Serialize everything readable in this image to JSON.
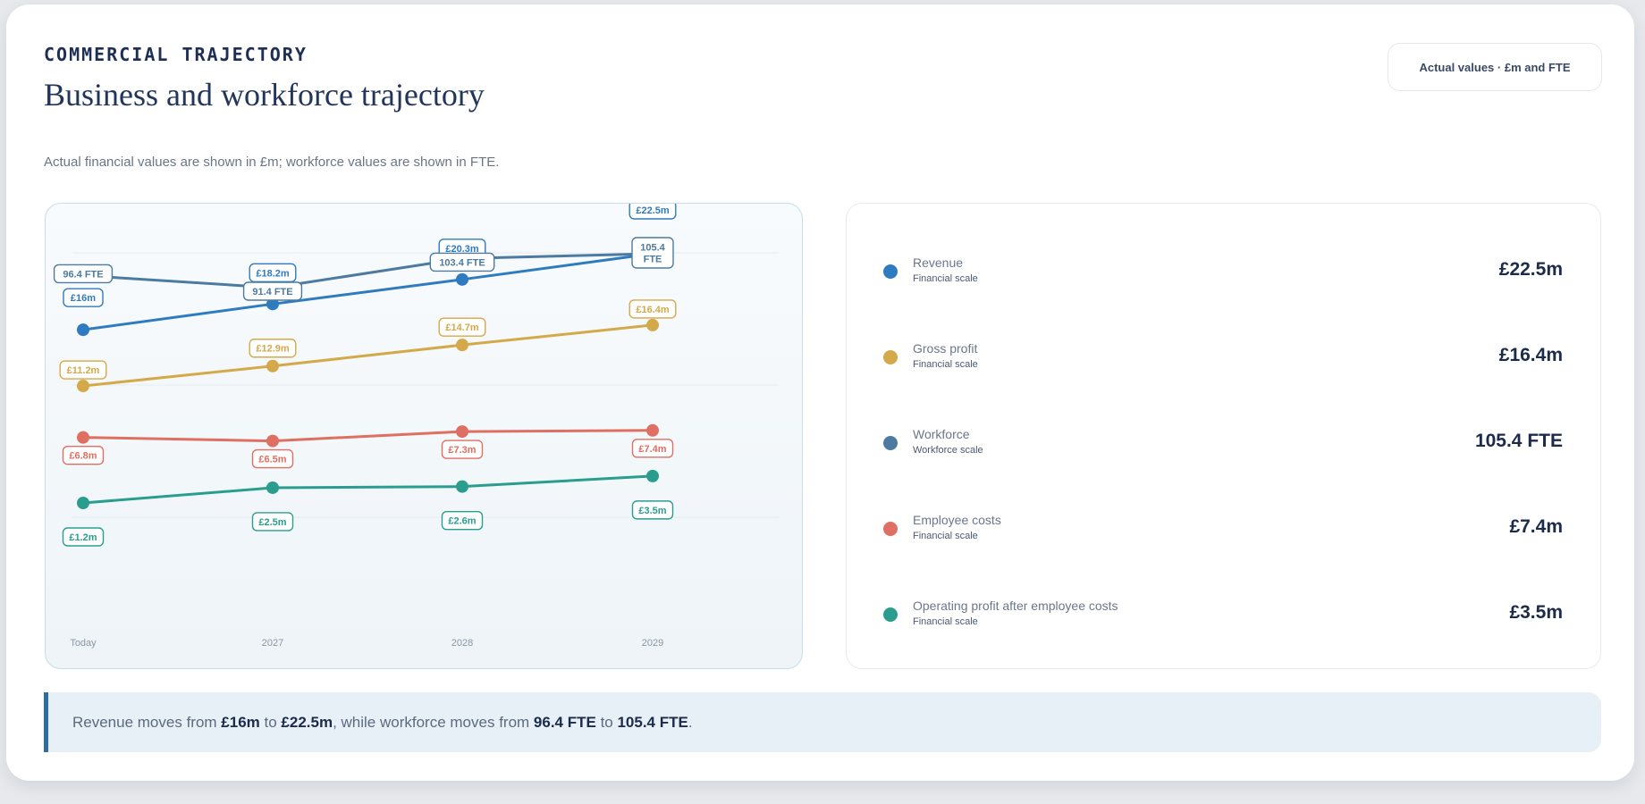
{
  "header": {
    "eyebrow": "COMMERCIAL TRAJECTORY",
    "title": "Business and workforce trajectory",
    "subtitle": "Actual financial values are shown in £m; workforce values are shown in FTE.",
    "badge": "Actual values · £m and FTE"
  },
  "colors": {
    "revenue": "#2f7bbf",
    "gross_profit": "#d4a94a",
    "workforce": "#4c7aa0",
    "employee_costs": "#df6f62",
    "operating_profit": "#2a9d8f"
  },
  "chart_data": {
    "type": "line",
    "x": [
      "Today",
      "2027",
      "2028",
      "2029"
    ],
    "series": [
      {
        "name": "Revenue",
        "key": "revenue",
        "scale": "financial",
        "values": [
          16,
          18.2,
          20.3,
          22.5
        ],
        "labels": [
          "£16m",
          "£18.2m",
          "£20.3m",
          "£22.5m"
        ]
      },
      {
        "name": "Gross profit",
        "key": "gross_profit",
        "scale": "financial",
        "values": [
          11.2,
          12.9,
          14.7,
          16.4
        ],
        "labels": [
          "£11.2m",
          "£12.9m",
          "£14.7m",
          "£16.4m"
        ]
      },
      {
        "name": "Workforce",
        "key": "workforce",
        "scale": "workforce",
        "values": [
          96.4,
          91.4,
          103.4,
          105.4
        ],
        "labels": [
          "96.4 FTE",
          "91.4 FTE",
          "103.4 FTE",
          "105.4 FTE"
        ]
      },
      {
        "name": "Employee costs",
        "key": "employee_costs",
        "scale": "financial",
        "values": [
          6.8,
          6.5,
          7.3,
          7.4
        ],
        "labels": [
          "£6.8m",
          "£6.5m",
          "£7.3m",
          "£7.4m"
        ]
      },
      {
        "name": "Operating profit after employee costs",
        "key": "operating_profit",
        "scale": "financial",
        "values": [
          1.2,
          2.5,
          2.6,
          3.5
        ],
        "labels": [
          "£1.2m",
          "£2.5m",
          "£2.6m",
          "£3.5m"
        ]
      }
    ]
  },
  "legend": [
    {
      "name": "Revenue",
      "scale": "Financial scale",
      "value": "£22.5m"
    },
    {
      "name": "Gross profit",
      "scale": "Financial scale",
      "value": "£16.4m"
    },
    {
      "name": "Workforce",
      "scale": "Workforce scale",
      "value": "105.4 FTE"
    },
    {
      "name": "Employee costs",
      "scale": "Financial scale",
      "value": "£7.4m"
    },
    {
      "name": "Operating profit after employee costs",
      "scale": "Financial scale",
      "value": "£3.5m"
    }
  ],
  "summary": {
    "prefix": "Revenue moves from ",
    "rev_start": "£16m",
    "mid1": " to ",
    "rev_end": "£22.5m",
    "mid2": ", while workforce moves from ",
    "fte_start": "96.4 FTE",
    "mid3": " to ",
    "fte_end": "105.4 FTE",
    "suffix": "."
  }
}
